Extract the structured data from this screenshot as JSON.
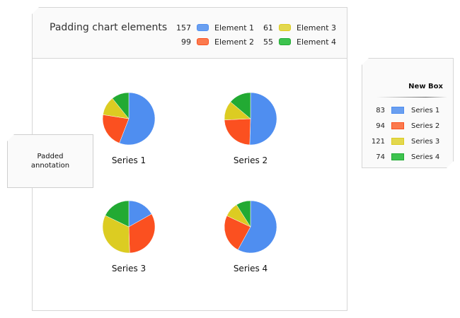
{
  "colors": {
    "series1": "#4f8ef0",
    "series2": "#fb5020",
    "series3": "#dccc22",
    "series4": "#22aa33",
    "series1_light": "#6a9ff0",
    "series2_light": "#fb7a4e",
    "series3_light": "#e3d84e",
    "series4_light": "#3ec34f"
  },
  "panel": {
    "title": "Padding chart elements",
    "legend": [
      {
        "value": "157",
        "label": "Element 1"
      },
      {
        "value": "99",
        "label": "Element 2"
      },
      {
        "value": "61",
        "label": "Element 3"
      },
      {
        "value": "55",
        "label": "Element 4"
      }
    ]
  },
  "annotation": {
    "line1": "Padded",
    "line2": "annotation"
  },
  "new_box": {
    "title": "New Box",
    "legend": [
      {
        "value": "83",
        "label": "Series 1"
      },
      {
        "value": "94",
        "label": "Series 2"
      },
      {
        "value": "121",
        "label": "Series 3"
      },
      {
        "value": "74",
        "label": "Series 4"
      }
    ]
  },
  "chart_data": {
    "type": "pie",
    "title": "Padding chart elements",
    "categories": [
      "Element 1",
      "Element 2",
      "Element 3",
      "Element 4"
    ],
    "series": [
      {
        "name": "Series 1",
        "values": [
          57,
          22,
          12,
          11
        ]
      },
      {
        "name": "Series 2",
        "values": [
          51,
          24,
          12,
          14
        ]
      },
      {
        "name": "Series 3",
        "values": [
          17,
          33,
          33,
          18
        ]
      },
      {
        "name": "Series 4",
        "values": [
          58,
          24,
          9,
          9
        ]
      }
    ],
    "legend_placement": "top-right"
  }
}
